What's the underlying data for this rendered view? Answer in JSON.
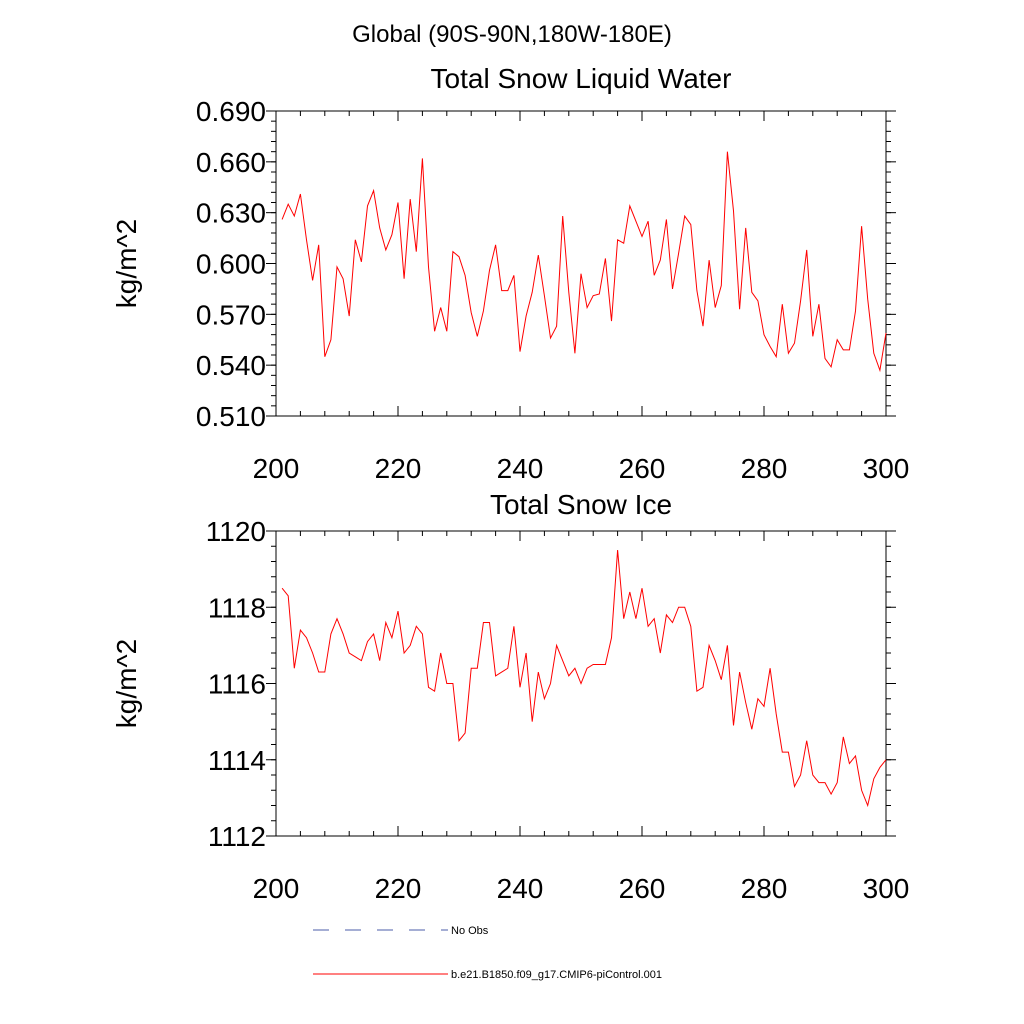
{
  "header": {
    "region": "Global (90S-90N,180W-180E)"
  },
  "legend": {
    "obs_label": "No Obs",
    "obs_color": "#4b5eaa",
    "model_label": "b.e21.B1850.f09_g17.CMIP6-piControl.001",
    "model_color": "#ff0000"
  },
  "chart_data": [
    {
      "type": "line",
      "title": "Total Snow Liquid Water",
      "xlabel": "",
      "ylabel": "kg/m^2",
      "xlim": [
        200,
        300
      ],
      "ylim": [
        0.51,
        0.69
      ],
      "x_major_ticks": [
        200,
        220,
        240,
        260,
        280,
        300
      ],
      "x_tick_labels": [
        "200",
        "220",
        "240",
        "260",
        "280",
        "300"
      ],
      "y_major_ticks": [
        0.51,
        0.54,
        0.57,
        0.6,
        0.63,
        0.66,
        0.69
      ],
      "y_tick_labels": [
        "0.510",
        "0.540",
        "0.570",
        "0.600",
        "0.630",
        "0.660",
        "0.690"
      ],
      "x_minor_step": 4,
      "y_minor_step": 0.006,
      "grid": false,
      "series": [
        {
          "name": "b.e21.B1850.f09_g17.CMIP6-piControl.001",
          "color": "#ff0000",
          "x_start": 201,
          "x_step": 1,
          "values": [
            0.626,
            0.635,
            0.628,
            0.641,
            0.614,
            0.59,
            0.611,
            0.545,
            0.555,
            0.598,
            0.591,
            0.569,
            0.614,
            0.601,
            0.634,
            0.643,
            0.621,
            0.608,
            0.617,
            0.636,
            0.591,
            0.638,
            0.607,
            0.662,
            0.598,
            0.56,
            0.574,
            0.56,
            0.607,
            0.604,
            0.593,
            0.571,
            0.557,
            0.572,
            0.596,
            0.611,
            0.584,
            0.584,
            0.593,
            0.548,
            0.569,
            0.583,
            0.605,
            0.581,
            0.556,
            0.563,
            0.628,
            0.583,
            0.547,
            0.594,
            0.574,
            0.581,
            0.582,
            0.603,
            0.566,
            0.614,
            0.612,
            0.634,
            0.625,
            0.616,
            0.625,
            0.593,
            0.602,
            0.626,
            0.585,
            0.606,
            0.628,
            0.623,
            0.584,
            0.563,
            0.602,
            0.574,
            0.587,
            0.666,
            0.631,
            0.573,
            0.621,
            0.583,
            0.578,
            0.558,
            0.551,
            0.545,
            0.576,
            0.547,
            0.553,
            0.578,
            0.608,
            0.557,
            0.576,
            0.544,
            0.539,
            0.555,
            0.549,
            0.549,
            0.572,
            0.622,
            0.579,
            0.547,
            0.537,
            0.559
          ]
        }
      ]
    },
    {
      "type": "line",
      "title": "Total Snow Ice",
      "xlabel": "",
      "ylabel": "kg/m^2",
      "xlim": [
        200,
        300
      ],
      "ylim": [
        1112,
        1120
      ],
      "x_major_ticks": [
        200,
        220,
        240,
        260,
        280,
        300
      ],
      "x_tick_labels": [
        "200",
        "220",
        "240",
        "260",
        "280",
        "300"
      ],
      "y_major_ticks": [
        1112,
        1114,
        1116,
        1118,
        1120
      ],
      "y_tick_labels": [
        "1112",
        "1114",
        "1116",
        "1118",
        "1120"
      ],
      "x_minor_step": 4,
      "y_minor_step": 0.4,
      "grid": false,
      "series": [
        {
          "name": "b.e21.B1850.f09_g17.CMIP6-piControl.001",
          "color": "#ff0000",
          "x_start": 201,
          "x_step": 1,
          "values": [
            1118.5,
            1118.3,
            1116.4,
            1117.4,
            1117.2,
            1116.8,
            1116.3,
            1116.3,
            1117.3,
            1117.7,
            1117.3,
            1116.8,
            1116.7,
            1116.6,
            1117.1,
            1117.3,
            1116.6,
            1117.6,
            1117.2,
            1117.9,
            1116.8,
            1117.0,
            1117.5,
            1117.3,
            1115.9,
            1115.8,
            1116.8,
            1116.0,
            1116.0,
            1114.5,
            1114.7,
            1116.4,
            1116.4,
            1117.6,
            1117.6,
            1116.2,
            1116.3,
            1116.4,
            1117.5,
            1115.9,
            1116.8,
            1115.0,
            1116.3,
            1115.6,
            1116.0,
            1117.0,
            1116.6,
            1116.2,
            1116.4,
            1116.0,
            1116.4,
            1116.5,
            1116.5,
            1116.5,
            1117.2,
            1119.5,
            1117.7,
            1118.4,
            1117.7,
            1118.5,
            1117.5,
            1117.7,
            1116.8,
            1117.8,
            1117.6,
            1118.0,
            1118.0,
            1117.5,
            1115.8,
            1115.9,
            1117.0,
            1116.6,
            1116.1,
            1117.0,
            1114.9,
            1116.3,
            1115.5,
            1114.8,
            1115.6,
            1115.4,
            1116.4,
            1115.2,
            1114.2,
            1114.2,
            1113.3,
            1113.6,
            1114.5,
            1113.6,
            1113.4,
            1113.4,
            1113.1,
            1113.4,
            1114.6,
            1113.9,
            1114.1,
            1113.2,
            1112.8,
            1113.5,
            1113.8,
            1114.0
          ]
        }
      ]
    }
  ]
}
